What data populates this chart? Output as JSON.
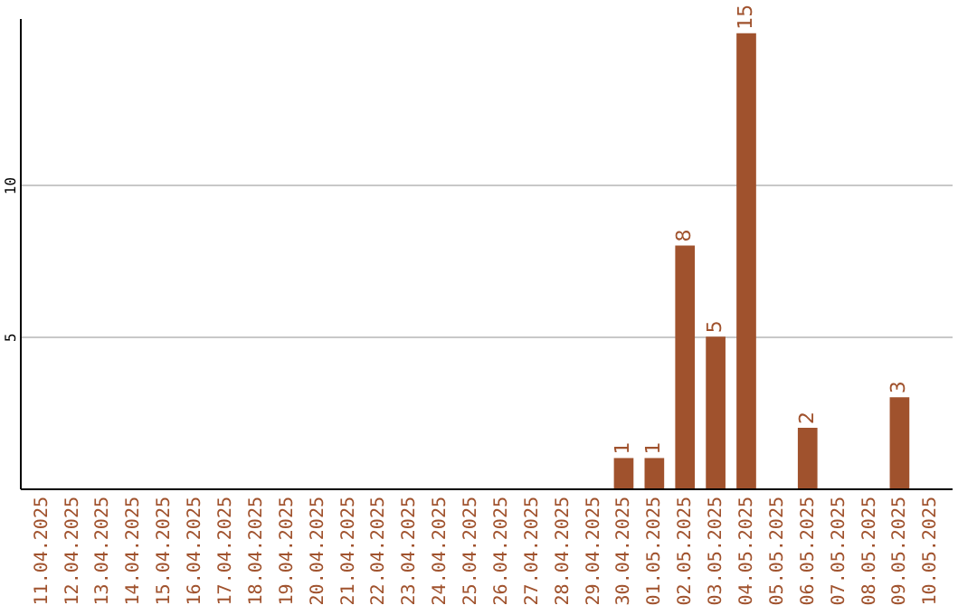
{
  "chart_data": {
    "type": "bar",
    "categories": [
      "11.04.2025",
      "12.04.2025",
      "13.04.2025",
      "14.04.2025",
      "15.04.2025",
      "16.04.2025",
      "17.04.2025",
      "18.04.2025",
      "19.04.2025",
      "20.04.2025",
      "21.04.2025",
      "22.04.2025",
      "23.04.2025",
      "24.04.2025",
      "25.04.2025",
      "26.04.2025",
      "27.04.2025",
      "28.04.2025",
      "29.04.2025",
      "30.04.2025",
      "01.05.2025",
      "02.05.2025",
      "03.05.2025",
      "04.05.2025",
      "05.05.2025",
      "06.05.2025",
      "07.05.2025",
      "08.05.2025",
      "09.05.2025",
      "10.05.2025"
    ],
    "values": [
      0,
      0,
      0,
      0,
      0,
      0,
      0,
      0,
      0,
      0,
      0,
      0,
      0,
      0,
      0,
      0,
      0,
      0,
      0,
      1,
      1,
      8,
      5,
      15,
      0,
      2,
      0,
      0,
      3,
      0
    ],
    "value_labels": [
      null,
      null,
      null,
      null,
      null,
      null,
      null,
      null,
      null,
      null,
      null,
      null,
      null,
      null,
      null,
      null,
      null,
      null,
      null,
      "1",
      "1",
      "8",
      "5",
      "15",
      null,
      "2",
      null,
      null,
      "3",
      null
    ],
    "color": "#a0522d",
    "ylim": [
      0,
      15.5
    ],
    "yticks": [
      5,
      10
    ],
    "grid": "y"
  }
}
